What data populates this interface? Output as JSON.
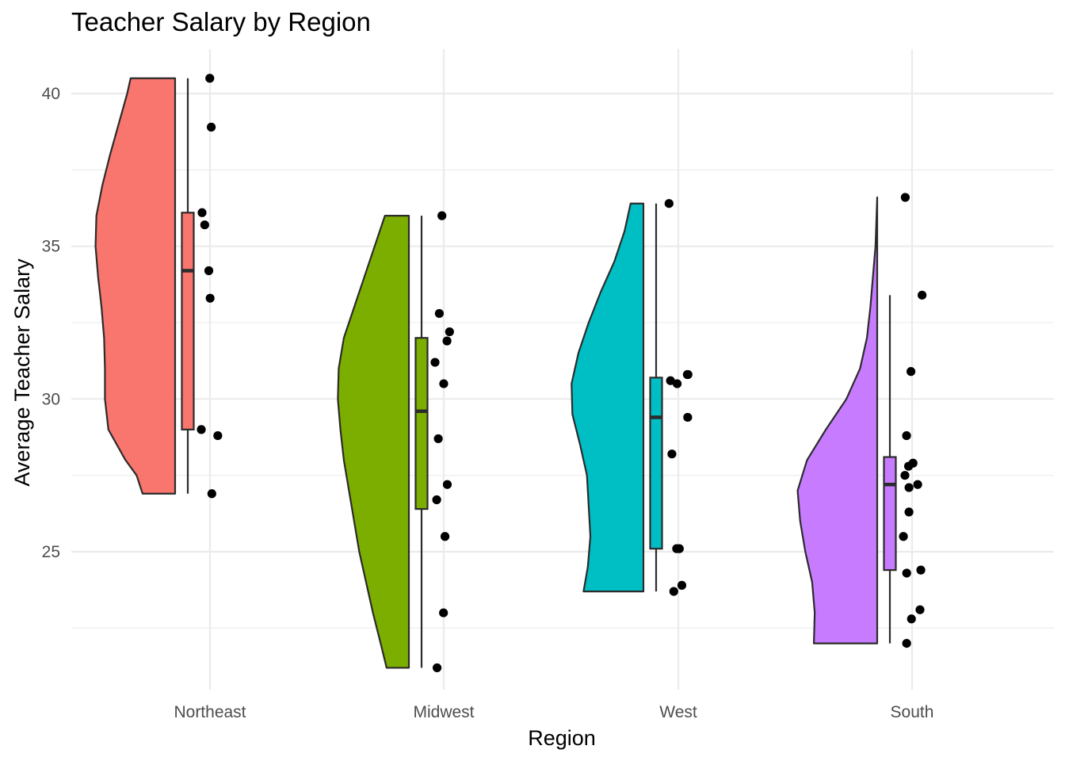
{
  "chart_data": {
    "type": "raincloud",
    "title": "Teacher Salary by Region",
    "xlabel": "Region",
    "ylabel": "Average Teacher Salary",
    "ylim": [
      20.3,
      41.8
    ],
    "yticks": [
      25,
      30,
      35,
      40
    ],
    "ytick_labels": [
      "25",
      "30",
      "35",
      "40"
    ],
    "grid": true,
    "legend": "none",
    "categories": [
      "Northeast",
      "Midwest",
      "West",
      "South"
    ],
    "groups": [
      {
        "name": "Northeast",
        "color": "#F8766D",
        "box": {
          "min": 26.9,
          "q1": 29.0,
          "median": 34.2,
          "q3": 36.1,
          "max": 40.5
        },
        "violin": [
          [
            26.9,
            0.38
          ],
          [
            27.5,
            0.45
          ],
          [
            28.0,
            0.58
          ],
          [
            29.0,
            0.78
          ],
          [
            30.0,
            0.82
          ],
          [
            31.0,
            0.82
          ],
          [
            32.0,
            0.83
          ],
          [
            33.0,
            0.86
          ],
          [
            34.0,
            0.9
          ],
          [
            35.0,
            0.93
          ],
          [
            36.0,
            0.92
          ],
          [
            37.0,
            0.85
          ],
          [
            38.0,
            0.76
          ],
          [
            39.0,
            0.66
          ],
          [
            40.0,
            0.56
          ],
          [
            40.5,
            0.52
          ]
        ],
        "points": [
          40.5,
          38.9,
          36.1,
          35.7,
          34.2,
          33.3,
          29.0,
          28.8,
          26.9
        ]
      },
      {
        "name": "Midwest",
        "color": "#7CAE00",
        "box": {
          "min": 21.2,
          "q1": 26.4,
          "median": 29.6,
          "q3": 32.0,
          "max": 36.0
        },
        "violin": [
          [
            21.2,
            0.26
          ],
          [
            22.0,
            0.33
          ],
          [
            23.0,
            0.42
          ],
          [
            24.0,
            0.5
          ],
          [
            25.0,
            0.58
          ],
          [
            26.0,
            0.64
          ],
          [
            27.0,
            0.7
          ],
          [
            28.0,
            0.76
          ],
          [
            29.0,
            0.8
          ],
          [
            30.0,
            0.83
          ],
          [
            31.0,
            0.82
          ],
          [
            32.0,
            0.76
          ],
          [
            33.0,
            0.64
          ],
          [
            34.0,
            0.52
          ],
          [
            35.0,
            0.4
          ],
          [
            36.0,
            0.28
          ]
        ],
        "points": [
          36.0,
          32.8,
          32.2,
          31.9,
          31.2,
          30.5,
          28.7,
          27.2,
          26.7,
          25.5,
          23.0,
          21.2
        ]
      },
      {
        "name": "West",
        "color": "#00BFC4",
        "box": {
          "min": 23.7,
          "q1": 25.1,
          "median": 29.4,
          "q3": 30.7,
          "max": 36.4
        },
        "violin": [
          [
            23.7,
            0.7
          ],
          [
            24.5,
            0.65
          ],
          [
            25.5,
            0.62
          ],
          [
            26.5,
            0.64
          ],
          [
            27.5,
            0.66
          ],
          [
            28.5,
            0.74
          ],
          [
            29.5,
            0.83
          ],
          [
            30.5,
            0.84
          ],
          [
            31.5,
            0.76
          ],
          [
            32.5,
            0.64
          ],
          [
            33.5,
            0.5
          ],
          [
            34.5,
            0.34
          ],
          [
            35.5,
            0.22
          ],
          [
            36.4,
            0.15
          ]
        ],
        "points": [
          36.4,
          30.8,
          30.8,
          30.6,
          30.5,
          29.4,
          28.2,
          25.1,
          25.1,
          23.9,
          23.7
        ]
      },
      {
        "name": "South",
        "color": "#C77CFF",
        "box": {
          "min": 22.0,
          "q1": 24.4,
          "median": 27.2,
          "q3": 28.1,
          "max": 33.4
        },
        "violin": [
          [
            22.0,
            0.74
          ],
          [
            23.0,
            0.73
          ],
          [
            24.0,
            0.76
          ],
          [
            25.0,
            0.84
          ],
          [
            26.0,
            0.9
          ],
          [
            27.0,
            0.93
          ],
          [
            28.0,
            0.82
          ],
          [
            29.0,
            0.6
          ],
          [
            30.0,
            0.36
          ],
          [
            31.0,
            0.2
          ],
          [
            32.0,
            0.12
          ],
          [
            33.0,
            0.08
          ],
          [
            34.0,
            0.05
          ],
          [
            35.0,
            0.02
          ],
          [
            36.6,
            0.0
          ]
        ],
        "points": [
          36.6,
          33.4,
          30.9,
          28.8,
          27.9,
          27.8,
          27.5,
          27.2,
          27.1,
          26.3,
          25.5,
          24.4,
          24.3,
          23.1,
          22.8,
          22.0
        ]
      }
    ]
  }
}
